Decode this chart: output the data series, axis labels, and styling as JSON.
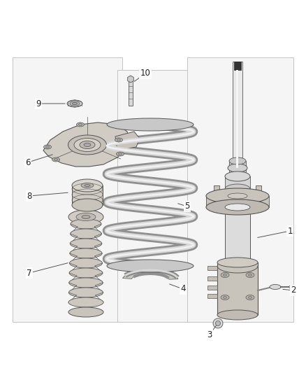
{
  "background_color": "#ffffff",
  "figure_width": 4.38,
  "figure_height": 5.33,
  "dpi": 100,
  "label_fontsize": 8.5,
  "lc": "#555555",
  "panel_edge": "#bbbbbb",
  "panel_face": "#f5f5f5"
}
